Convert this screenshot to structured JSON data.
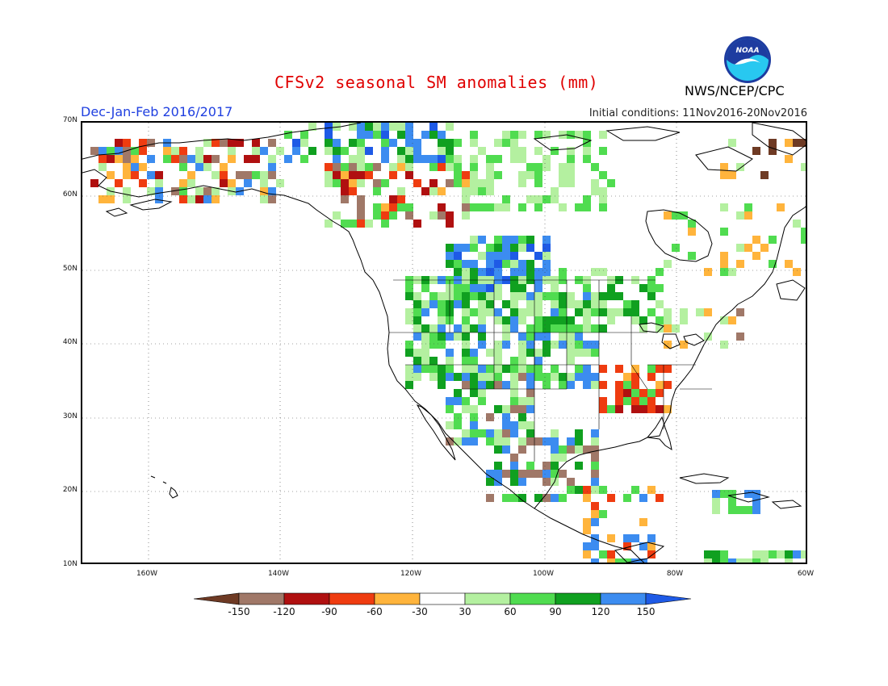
{
  "title": "CFSv2 seasonal SM anomalies (mm)",
  "season": "Dec-Jan-Feb 2016/2017",
  "initial_conditions": "Initial conditions: 11Nov2016-20Nov2016",
  "agency": "NWS/NCEP/CPC",
  "logo_text": "NOAA",
  "lat_labels": [
    "70N",
    "60N",
    "50N",
    "40N",
    "30N",
    "20N",
    "10N"
  ],
  "lon_labels": [
    "160W",
    "140W",
    "120W",
    "100W",
    "80W",
    "60W"
  ],
  "colorbar": {
    "labels": [
      "-150",
      "-120",
      "-90",
      "-60",
      "-30",
      "30",
      "60",
      "90",
      "120",
      "150"
    ],
    "colors": [
      "#6e3a24",
      "#a07868",
      "#b01010",
      "#ef3c10",
      "#ffb43c",
      "#ffffff",
      "#b4f0a0",
      "#50dc50",
      "#10a020",
      "#3c8cf0",
      "#1e5ae6"
    ]
  },
  "colors": {
    "title": "#e00000",
    "season": "#2040e0",
    "noaa_blue": "#1e3ca0",
    "noaa_cyan": "#28c8f0"
  }
}
